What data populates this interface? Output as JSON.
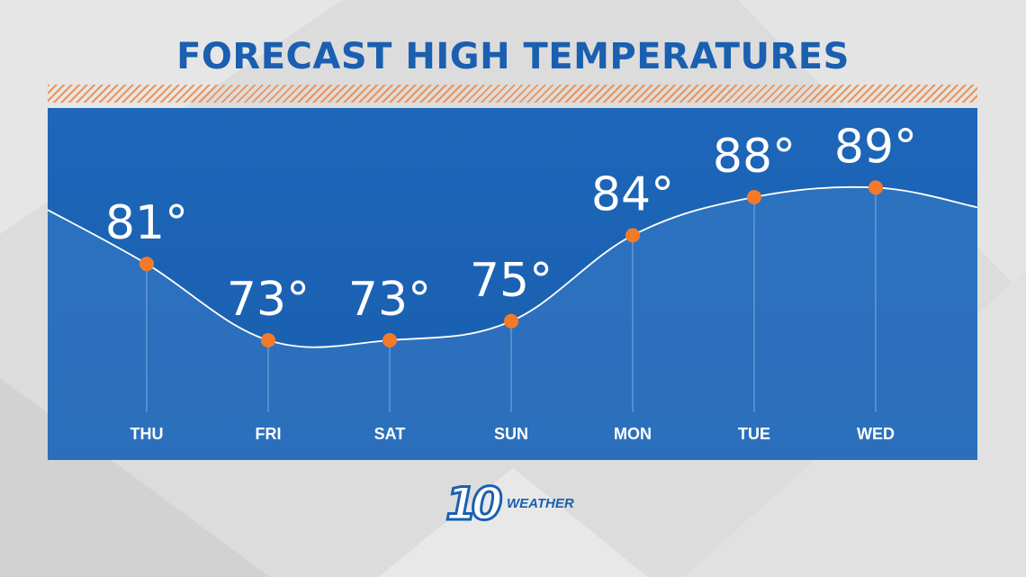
{
  "colors": {
    "panel": "#1a5fb0",
    "title": "#1a5fb0",
    "point": "#f47a2a",
    "line": "#ffffff",
    "stripe": "#ef8a4a"
  },
  "logo": {
    "number": "10",
    "word": "WEATHER"
  },
  "chart_data": {
    "type": "line",
    "title": "FORECAST HIGH TEMPERATURES",
    "categories": [
      "THU",
      "FRI",
      "SAT",
      "SUN",
      "MON",
      "TUE",
      "WED"
    ],
    "values": [
      81,
      73,
      73,
      75,
      84,
      88,
      89
    ],
    "labels": [
      "81°",
      "73°",
      "73°",
      "75°",
      "84°",
      "88°",
      "89°"
    ],
    "grid": false,
    "smooth": true
  }
}
